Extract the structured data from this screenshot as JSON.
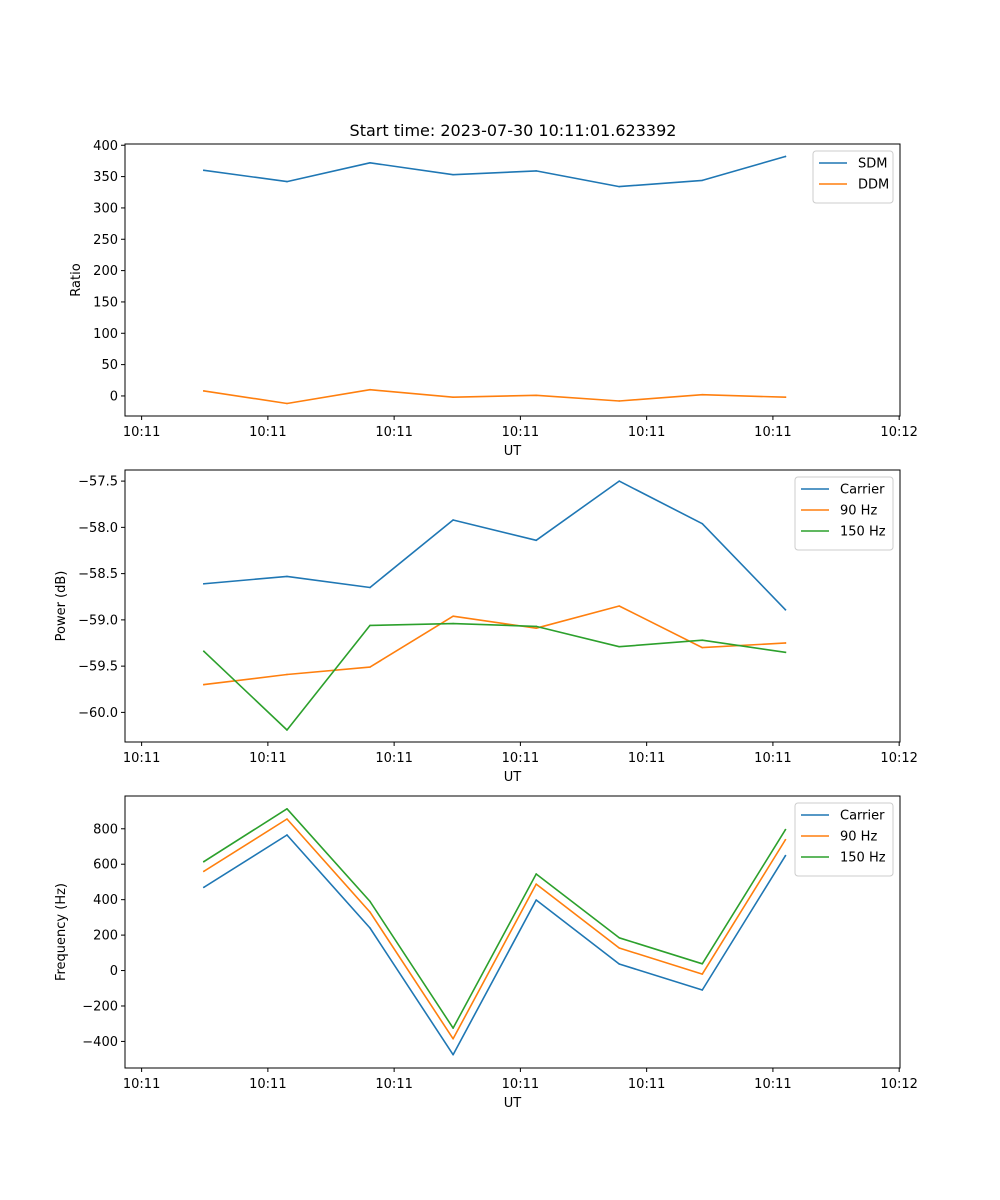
{
  "figure_title": "Start time: 2023-07-30 10:11:01.623392",
  "colors": {
    "blue": "#1f77b4",
    "orange": "#ff7f0e",
    "green": "#2ca02c",
    "axis": "#000000",
    "legend_border": "#cccccc"
  },
  "chart_data": [
    {
      "type": "line",
      "title": "Start time: 2023-07-30 10:11:01.623392",
      "xlabel": "UT",
      "ylabel": "Ratio",
      "x": [
        0,
        1,
        2,
        3,
        4,
        5,
        6,
        7
      ],
      "x_tick_values": [
        -0.75,
        0.77,
        2.29,
        3.81,
        5.33,
        6.85,
        8.37
      ],
      "x_tick_labels": [
        "10:11",
        "10:11",
        "10:11",
        "10:11",
        "10:11",
        "10:11",
        "10:12"
      ],
      "xlim": [
        -0.95,
        8.38
      ],
      "ylim": [
        -32,
        402
      ],
      "y_ticks": [
        0,
        50,
        100,
        150,
        200,
        250,
        300,
        350,
        400
      ],
      "y_tick_labels": [
        "0",
        "50",
        "100",
        "150",
        "200",
        "250",
        "300",
        "350",
        "400"
      ],
      "legend": "top-right",
      "series": [
        {
          "name": "SDM",
          "color": "#1f77b4",
          "values": [
            360,
            342,
            372,
            353,
            359,
            334,
            344,
            382
          ]
        },
        {
          "name": "DDM",
          "color": "#ff7f0e",
          "values": [
            8,
            -12,
            10,
            -2,
            1,
            -8,
            2,
            -2
          ]
        }
      ]
    },
    {
      "type": "line",
      "title": "",
      "xlabel": "UT",
      "ylabel": "Power (dB)",
      "x": [
        0,
        1,
        2,
        3,
        4,
        5,
        6,
        7
      ],
      "x_tick_values": [
        -0.75,
        0.77,
        2.29,
        3.81,
        5.33,
        6.85,
        8.37
      ],
      "x_tick_labels": [
        "10:11",
        "10:11",
        "10:11",
        "10:11",
        "10:11",
        "10:11",
        "10:12"
      ],
      "xlim": [
        -0.95,
        8.38
      ],
      "ylim": [
        -60.32,
        -57.38
      ],
      "y_ticks": [
        -60.0,
        -59.5,
        -59.0,
        -58.5,
        -58.0,
        -57.5
      ],
      "y_tick_labels": [
        "−60.0",
        "−59.5",
        "−59.0",
        "−58.5",
        "−58.0",
        "−57.5"
      ],
      "legend": "top-right",
      "series": [
        {
          "name": "Carrier",
          "color": "#1f77b4",
          "values": [
            -58.61,
            -58.53,
            -58.65,
            -57.92,
            -58.14,
            -57.5,
            -57.96,
            -58.89
          ]
        },
        {
          "name": "90 Hz",
          "color": "#ff7f0e",
          "values": [
            -59.7,
            -59.59,
            -59.51,
            -58.96,
            -59.09,
            -58.85,
            -59.3,
            -59.25
          ]
        },
        {
          "name": "150 Hz",
          "color": "#2ca02c",
          "values": [
            -59.34,
            -60.19,
            -59.06,
            -59.04,
            -59.07,
            -59.29,
            -59.22,
            -59.35
          ]
        }
      ]
    },
    {
      "type": "line",
      "title": "",
      "xlabel": "UT",
      "ylabel": "Frequency (Hz)",
      "x": [
        0,
        1,
        2,
        3,
        4,
        5,
        6,
        7
      ],
      "x_tick_values": [
        -0.75,
        0.77,
        2.29,
        3.81,
        5.33,
        6.85,
        8.37
      ],
      "x_tick_labels": [
        "10:11",
        "10:11",
        "10:11",
        "10:11",
        "10:11",
        "10:11",
        "10:12"
      ],
      "xlim": [
        -0.95,
        8.38
      ],
      "ylim": [
        -550,
        985
      ],
      "y_ticks": [
        -400,
        -200,
        0,
        200,
        400,
        600,
        800
      ],
      "y_tick_labels": [
        "−400",
        "−200",
        "0",
        "200",
        "400",
        "600",
        "800"
      ],
      "legend": "top-right",
      "series": [
        {
          "name": "Carrier",
          "color": "#1f77b4",
          "values": [
            470,
            765,
            240,
            -475,
            398,
            37,
            -110,
            648
          ]
        },
        {
          "name": "90 Hz",
          "color": "#ff7f0e",
          "values": [
            560,
            855,
            330,
            -385,
            488,
            127,
            -20,
            738
          ]
        },
        {
          "name": "150 Hz",
          "color": "#2ca02c",
          "values": [
            615,
            913,
            390,
            -325,
            545,
            185,
            38,
            795
          ]
        }
      ]
    }
  ]
}
